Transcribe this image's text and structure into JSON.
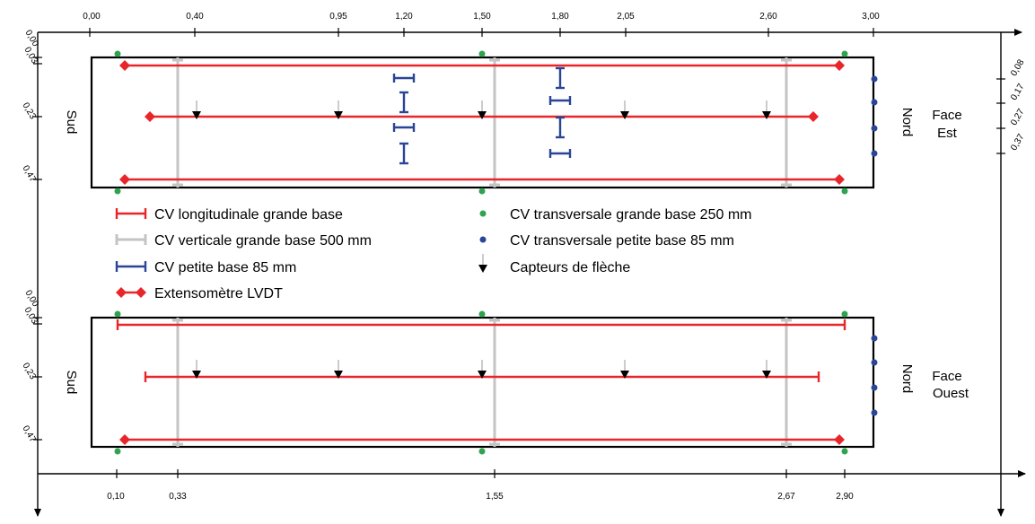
{
  "top_axis_ticks": [
    "0,00",
    "0,40",
    "0,95",
    "1,20",
    "1,50",
    "1,80",
    "2,05",
    "2,60",
    "3,00"
  ],
  "bottom_axis_ticks": [
    "0,10",
    "0,33",
    "1,55",
    "2,67",
    "2,90"
  ],
  "left_axis_ticks_top": [
    "0,00",
    "0,03",
    "0,23",
    "0,47"
  ],
  "left_axis_ticks_bottom": [
    "0,00",
    "0,03",
    "0,23",
    "0,47"
  ],
  "right_axis_ticks": [
    "0,08",
    "0,17",
    "0,27",
    "0,37"
  ],
  "panels": {
    "top": {
      "south": "Sud",
      "north": "Nord",
      "face_line1": "Face",
      "face_line2": "Est"
    },
    "bottom": {
      "south": "Sud",
      "north": "Nord",
      "face_line1": "Face",
      "face_line2": "Ouest"
    }
  },
  "legend": {
    "longitudinal": "CV longitudinale grande base",
    "vertical": "CV verticale grande base 500 mm",
    "petite_base": "CV petite base 85 mm",
    "lvdt": "Extensomètre LVDT",
    "transversal_grande": "CV transversale grande base 250 mm",
    "transversal_petite": "CV transversale petite base 85 mm",
    "deflection": "Capteurs de flèche"
  },
  "colors": {
    "red": "#e8262a",
    "grey": "#c4c4c4",
    "blue": "#2a4597",
    "green": "#2ea44f",
    "black": "#000000"
  }
}
